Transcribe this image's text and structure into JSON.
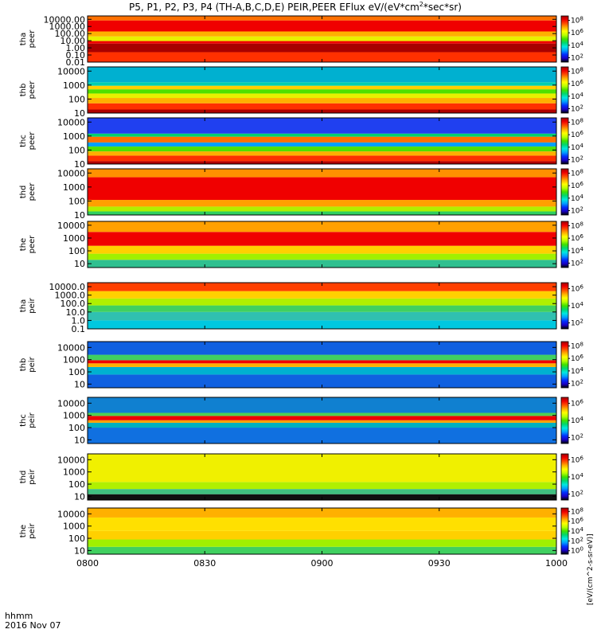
{
  "chart_data": {
    "type": "heatmap",
    "title": "P5, P1, P2, P3, P4 (TH-A,B,C,D,E) PEIR,PEER EFlux eV/(eV*cm^2*sec*sr)",
    "title_parts": {
      "prefix": "P5, P1, P2, P3, P4 (TH-A,B,C,D,E) PEIR,PEER EFlux eV/(eV*cm",
      "sup1": "2",
      "suffix": "*sec*sr)"
    },
    "x_axis": {
      "label_line1": "hhmm",
      "label_line2": "2016 Nov 07",
      "ticks": [
        "0800",
        "0830",
        "0900",
        "0930",
        "1000"
      ],
      "range_hours": [
        8.0,
        10.0
      ]
    },
    "colorbar_unit_label": "[eV/(cm^2-s-sr-eV)]",
    "colormap": [
      "#000000",
      "#1a00c8",
      "#0030ff",
      "#00a0ff",
      "#00e8e0",
      "#00d870",
      "#40e000",
      "#b8ff00",
      "#ffff00",
      "#ffb000",
      "#ff5000",
      "#f00000",
      "#a00000"
    ],
    "panels": [
      {
        "probe_label": "tha",
        "species_label": "peer",
        "yticks": [
          "10000.00",
          "1000.00",
          "100.00",
          "10.00",
          "1.00",
          "0.10",
          "0.01"
        ],
        "ylim": [
          0.01,
          30000
        ],
        "cb_ticks": [
          "10^8",
          "10^6",
          "10^4",
          "10^2"
        ],
        "cb_exp": [
          8,
          6,
          4,
          2
        ],
        "bands": [
          {
            "from": 0.01,
            "to": 0.25,
            "color": "#ff3000"
          },
          {
            "from": 0.25,
            "to": 4,
            "color": "#a80000"
          },
          {
            "from": 4,
            "to": 9,
            "color": "#f00000"
          },
          {
            "from": 9,
            "to": 40,
            "color": "#e8f000"
          },
          {
            "from": 40,
            "to": 200,
            "color": "#ffb000"
          },
          {
            "from": 200,
            "to": 7000,
            "color": "#f00000"
          },
          {
            "from": 7000,
            "to": 30000,
            "color": "#ff7000"
          }
        ]
      },
      {
        "probe_label": "thb",
        "species_label": "peer",
        "yticks": [
          "10000",
          "1000",
          "100",
          "10"
        ],
        "ylim": [
          10,
          20000
        ],
        "cb_ticks": [
          "10^8",
          "10^6",
          "10^4",
          "10^2"
        ],
        "cb_exp": [
          8,
          6,
          4,
          2
        ],
        "bands": [
          {
            "from": 10,
            "to": 18,
            "color": "#b00000"
          },
          {
            "from": 18,
            "to": 50,
            "color": "#ff3000"
          },
          {
            "from": 50,
            "to": 120,
            "color": "#ffb000"
          },
          {
            "from": 120,
            "to": 250,
            "color": "#e8f000"
          },
          {
            "from": 250,
            "to": 500,
            "color": "#50e000"
          },
          {
            "from": 500,
            "to": 900,
            "color": "#ffd000"
          },
          {
            "from": 900,
            "to": 1600,
            "color": "#00d0b0"
          },
          {
            "from": 1600,
            "to": 20000,
            "color": "#00b0d0"
          }
        ]
      },
      {
        "probe_label": "thc",
        "species_label": "peer",
        "yticks": [
          "10000",
          "1000",
          "100",
          "10"
        ],
        "ylim": [
          10,
          20000
        ],
        "cb_ticks": [
          "10^8",
          "10^6",
          "10^4",
          "10^2"
        ],
        "cb_exp": [
          8,
          6,
          4,
          2
        ],
        "bands": [
          {
            "from": 10,
            "to": 16,
            "color": "#b00000"
          },
          {
            "from": 16,
            "to": 40,
            "color": "#ff3000"
          },
          {
            "from": 40,
            "to": 80,
            "color": "#ffb000"
          },
          {
            "from": 80,
            "to": 180,
            "color": "#50e000"
          },
          {
            "from": 180,
            "to": 350,
            "color": "#00a0ff"
          },
          {
            "from": 350,
            "to": 900,
            "color": "#ff7000"
          },
          {
            "from": 900,
            "to": 1500,
            "color": "#00d070"
          },
          {
            "from": 1500,
            "to": 20000,
            "color": "#2040f0"
          }
        ]
      },
      {
        "probe_label": "thd",
        "species_label": "peer",
        "yticks": [
          "10000",
          "1000",
          "100",
          "10"
        ],
        "ylim": [
          10,
          20000
        ],
        "cb_ticks": [
          "10^8",
          "10^6",
          "10^4",
          "10^2"
        ],
        "cb_exp": [
          8,
          6,
          4,
          2
        ],
        "bands": [
          {
            "from": 10,
            "to": 18,
            "color": "#30d060"
          },
          {
            "from": 18,
            "to": 40,
            "color": "#b0f000"
          },
          {
            "from": 40,
            "to": 120,
            "color": "#ffa000"
          },
          {
            "from": 120,
            "to": 5000,
            "color": "#f00000"
          },
          {
            "from": 5000,
            "to": 20000,
            "color": "#ff9000"
          }
        ]
      },
      {
        "probe_label": "the",
        "species_label": "peer",
        "yticks": [
          "10000",
          "1000",
          "100",
          "10"
        ],
        "ylim": [
          5,
          20000
        ],
        "cb_ticks": [
          "10^8",
          "10^6",
          "10^4",
          "10^2"
        ],
        "cb_exp": [
          8,
          6,
          4,
          2
        ],
        "bands": [
          {
            "from": 5,
            "to": 20,
            "color": "#30c090"
          },
          {
            "from": 20,
            "to": 60,
            "color": "#a0f000"
          },
          {
            "from": 60,
            "to": 250,
            "color": "#ffd000"
          },
          {
            "from": 250,
            "to": 3000,
            "color": "#f00000"
          },
          {
            "from": 3000,
            "to": 20000,
            "color": "#ffa000"
          }
        ]
      },
      {
        "probe_label": "tha",
        "species_label": "peir",
        "yticks": [
          "10000.0",
          "1000.0",
          "100.0",
          "10.0",
          "1.0",
          "0.1"
        ],
        "ylim": [
          0.1,
          30000
        ],
        "cb_ticks": [
          "10^6",
          "10^4",
          "10^2"
        ],
        "cb_exp": [
          6,
          4,
          2
        ],
        "bands": [
          {
            "from": 0.1,
            "to": 1,
            "color": "#00c8e0"
          },
          {
            "from": 1,
            "to": 10,
            "color": "#30c0b0"
          },
          {
            "from": 10,
            "to": 60,
            "color": "#40d060"
          },
          {
            "from": 60,
            "to": 400,
            "color": "#b0f000"
          },
          {
            "from": 400,
            "to": 3000,
            "color": "#ffd000"
          },
          {
            "from": 3000,
            "to": 30000,
            "color": "#ff4000"
          }
        ]
      },
      {
        "probe_label": "thb",
        "species_label": "peir",
        "yticks": [
          "10000",
          "1000",
          "100",
          "10"
        ],
        "ylim": [
          5,
          30000
        ],
        "cb_ticks": [
          "10^8",
          "10^6",
          "10^4",
          "10^2"
        ],
        "cb_exp": [
          8,
          6,
          4,
          2
        ],
        "bands": [
          {
            "from": 5,
            "to": 60,
            "color": "#1060e0"
          },
          {
            "from": 60,
            "to": 250,
            "color": "#00b0d0"
          },
          {
            "from": 250,
            "to": 500,
            "color": "#ffb000"
          },
          {
            "from": 500,
            "to": 900,
            "color": "#f00000"
          },
          {
            "from": 900,
            "to": 2500,
            "color": "#40d060"
          },
          {
            "from": 2500,
            "to": 30000,
            "color": "#1060e0"
          }
        ]
      },
      {
        "probe_label": "thc",
        "species_label": "peir",
        "yticks": [
          "10000",
          "1000",
          "100",
          "10"
        ],
        "ylim": [
          5,
          30000
        ],
        "cb_ticks": [
          "10^6",
          "10^4",
          "10^2"
        ],
        "cb_exp": [
          6,
          4,
          2
        ],
        "bands": [
          {
            "from": 5,
            "to": 100,
            "color": "#1070e0"
          },
          {
            "from": 100,
            "to": 250,
            "color": "#00b0c0"
          },
          {
            "from": 250,
            "to": 400,
            "color": "#ffa000"
          },
          {
            "from": 400,
            "to": 900,
            "color": "#f00000"
          },
          {
            "from": 900,
            "to": 1600,
            "color": "#50d050"
          },
          {
            "from": 1600,
            "to": 30000,
            "color": "#1080d0"
          }
        ]
      },
      {
        "probe_label": "thd",
        "species_label": "peir",
        "yticks": [
          "10000",
          "1000",
          "100",
          "10"
        ],
        "ylim": [
          5,
          30000
        ],
        "cb_ticks": [
          "10^6",
          "10^4",
          "10^2"
        ],
        "cb_exp": [
          6,
          4,
          2
        ],
        "bands": [
          {
            "from": 5,
            "to": 15,
            "color": "#101010"
          },
          {
            "from": 15,
            "to": 40,
            "color": "#40c080"
          },
          {
            "from": 40,
            "to": 150,
            "color": "#b0f000"
          },
          {
            "from": 150,
            "to": 30000,
            "color": "#f0f000"
          }
        ]
      },
      {
        "probe_label": "the",
        "species_label": "peir",
        "yticks": [
          "10000",
          "1000",
          "100",
          "10"
        ],
        "ylim": [
          5,
          30000
        ],
        "cb_ticks": [
          "10^8",
          "10^6",
          "10^4",
          "10^2",
          "10^0"
        ],
        "cb_exp": [
          8,
          6,
          4,
          2,
          0
        ],
        "bands": [
          {
            "from": 5,
            "to": 20,
            "color": "#40d060"
          },
          {
            "from": 20,
            "to": 80,
            "color": "#a0f000"
          },
          {
            "from": 80,
            "to": 400,
            "color": "#ffd000"
          },
          {
            "from": 400,
            "to": 5000,
            "color": "#ffe000"
          },
          {
            "from": 5000,
            "to": 30000,
            "color": "#ffb000"
          }
        ]
      }
    ]
  }
}
